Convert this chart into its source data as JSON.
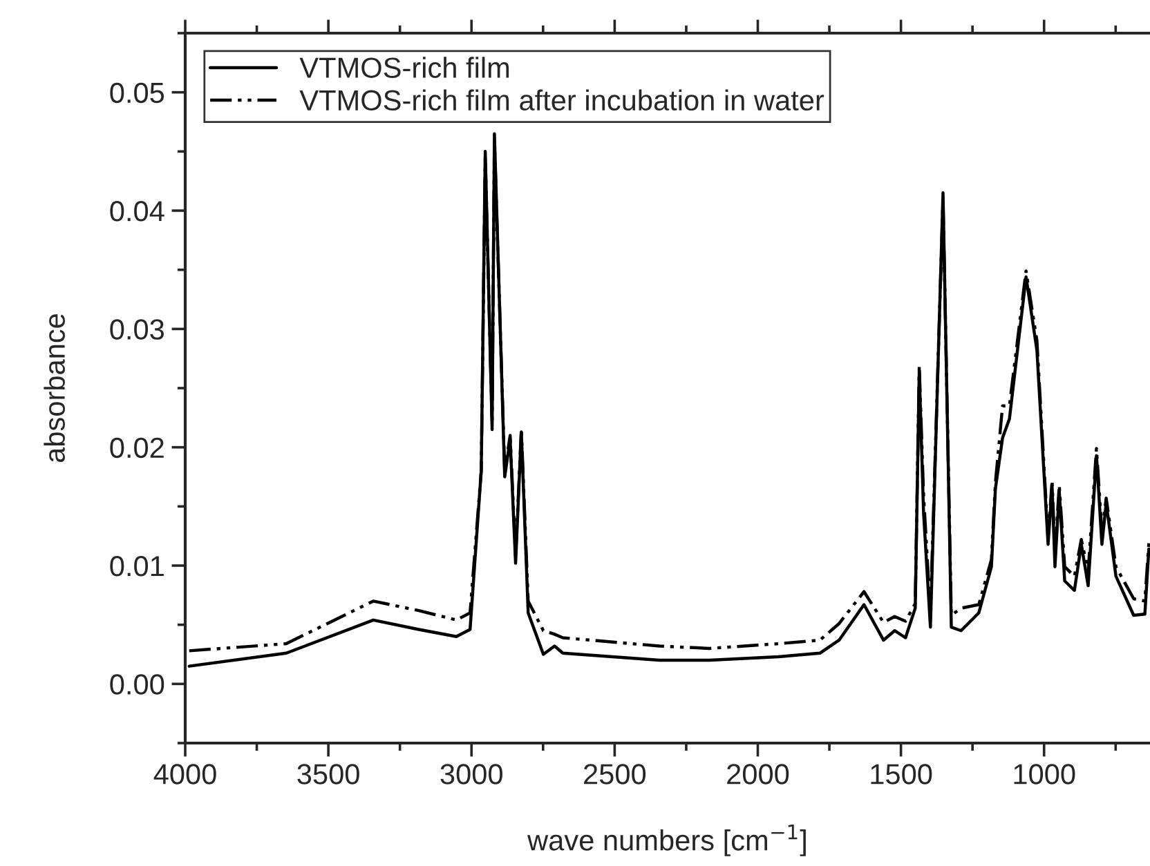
{
  "chart_data": {
    "type": "line",
    "xlabel": "wave numbers [cm$^{−1}$]",
    "ylabel": "absorbance",
    "xlim": [
      4000,
      630
    ],
    "xticks": [
      4000,
      3500,
      3000,
      2500,
      2000,
      1500,
      1000
    ],
    "ylim": [
      -0.005,
      0.055
    ],
    "yticks": [
      {
        "value": 0,
        "label": "0.00"
      },
      0.01,
      0.02,
      0.03,
      0.04,
      0.05
    ],
    "legend": "top left",
    "grid": false,
    "marker": "none",
    "series": [
      {
        "name": "VTMOS-rich film",
        "color": "#000000",
        "line_style": "solid",
        "x": [
          3986,
          3647,
          3343,
          3184,
          3053,
          3005,
          2966,
          2952,
          2928,
          2920,
          2884,
          2865,
          2846,
          2826,
          2802,
          2749,
          2710,
          2681,
          2343,
          2169,
          1928,
          1783,
          1716,
          1629,
          1561,
          1522,
          1484,
          1450,
          1436,
          1421,
          1397,
          1353,
          1324,
          1290,
          1228,
          1184,
          1170,
          1145,
          1121,
          1063,
          1025,
          986,
          972,
          962,
          947,
          928,
          894,
          870,
          846,
          817,
          798,
          783,
          749,
          687,
          648,
          634
        ],
        "values": [
          0.0015,
          0.0026,
          0.0054,
          0.0046,
          0.004,
          0.0046,
          0.018,
          0.045,
          0.0215,
          0.0465,
          0.0175,
          0.0207,
          0.0102,
          0.0213,
          0.006,
          0.0025,
          0.0032,
          0.0026,
          0.002,
          0.002,
          0.0023,
          0.0026,
          0.0037,
          0.0067,
          0.0037,
          0.0045,
          0.0039,
          0.0064,
          0.0265,
          0.0145,
          0.0048,
          0.0415,
          0.0048,
          0.0045,
          0.006,
          0.0099,
          0.0165,
          0.0208,
          0.0224,
          0.0344,
          0.0282,
          0.0118,
          0.0167,
          0.0099,
          0.0163,
          0.0087,
          0.0079,
          0.0118,
          0.0083,
          0.0193,
          0.0118,
          0.0153,
          0.0091,
          0.0058,
          0.0059,
          0.0114
        ]
      },
      {
        "name": "VTMOS-rich film after incubation in water",
        "color": "#000000",
        "line_style": "dashdot",
        "x": [
          3986,
          3647,
          3343,
          3184,
          3053,
          3005,
          2966,
          2952,
          2928,
          2920,
          2884,
          2865,
          2846,
          2826,
          2802,
          2749,
          2710,
          2681,
          2343,
          2169,
          1928,
          1783,
          1716,
          1629,
          1561,
          1522,
          1484,
          1450,
          1436,
          1421,
          1397,
          1353,
          1324,
          1290,
          1228,
          1184,
          1170,
          1145,
          1121,
          1063,
          1025,
          986,
          972,
          962,
          947,
          928,
          894,
          870,
          846,
          817,
          798,
          783,
          749,
          687,
          648,
          634
        ],
        "values": [
          0.0028,
          0.0034,
          0.007,
          0.0062,
          0.0054,
          0.006,
          0.018,
          0.0445,
          0.022,
          0.046,
          0.018,
          0.021,
          0.0108,
          0.0215,
          0.007,
          0.0045,
          0.0042,
          0.0039,
          0.0032,
          0.003,
          0.0034,
          0.0037,
          0.0051,
          0.0078,
          0.0052,
          0.0057,
          0.0053,
          0.0068,
          0.0269,
          0.016,
          0.006,
          0.041,
          0.0058,
          0.0064,
          0.0067,
          0.0105,
          0.017,
          0.0235,
          0.0235,
          0.0349,
          0.029,
          0.0123,
          0.0172,
          0.011,
          0.0168,
          0.0099,
          0.0091,
          0.0122,
          0.0095,
          0.0199,
          0.0128,
          0.0157,
          0.0099,
          0.0072,
          0.007,
          0.0119
        ]
      }
    ]
  }
}
